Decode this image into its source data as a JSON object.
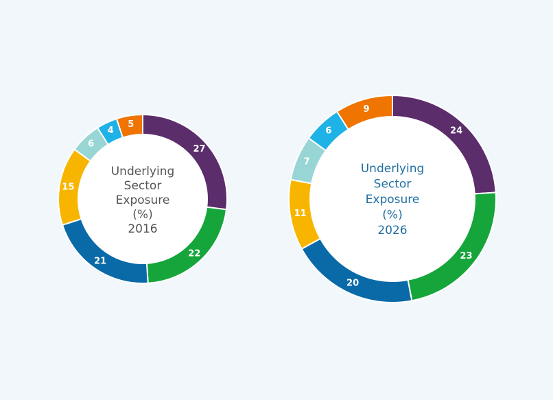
{
  "chart_data": [
    {
      "type": "donut",
      "center_label": [
        "Underlying",
        "Sector",
        "Exposure",
        "(%)",
        "2016"
      ],
      "center_color": "#555555",
      "segments": [
        {
          "value": 27,
          "label": "27",
          "color": "#5b2d6b"
        },
        {
          "value": 22,
          "label": "22",
          "color": "#16a53b"
        },
        {
          "value": 21,
          "label": "21",
          "color": "#0a6aa8"
        },
        {
          "value": 15,
          "label": "15",
          "color": "#f7b500"
        },
        {
          "value": 6,
          "label": "6",
          "color": "#98d6d5"
        },
        {
          "value": 4,
          "label": "4",
          "color": "#1fb2e6"
        },
        {
          "value": 5,
          "label": "5",
          "color": "#ef7400"
        }
      ]
    },
    {
      "type": "donut",
      "center_label": [
        "Underlying",
        "Sector",
        "Exposure",
        "(%)",
        "2026"
      ],
      "center_color": "#1f6fa1",
      "segments": [
        {
          "value": 24,
          "label": "24",
          "color": "#5b2d6b"
        },
        {
          "value": 23,
          "label": "23",
          "color": "#16a53b"
        },
        {
          "value": 20,
          "label": "20",
          "color": "#0a6aa8"
        },
        {
          "value": 11,
          "label": "11",
          "color": "#f7b500"
        },
        {
          "value": 7,
          "label": "7",
          "color": "#98d6d5"
        },
        {
          "value": 6,
          "label": "6",
          "color": "#1fb2e6"
        },
        {
          "value": 9,
          "label": "9",
          "color": "#ef7400"
        }
      ]
    }
  ]
}
